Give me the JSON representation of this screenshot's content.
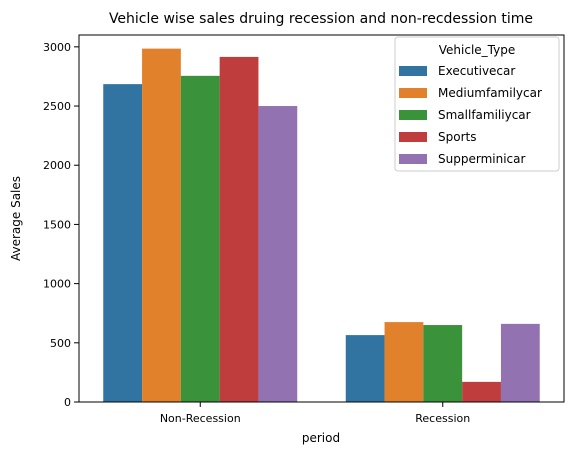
{
  "chart_data": {
    "type": "bar",
    "title": "Vehicle wise sales druing recession and non-recdession time",
    "xlabel": "period",
    "ylabel": "Average Sales",
    "categories": [
      "Non-Recession",
      "Recession"
    ],
    "ylim": [
      0,
      3100
    ],
    "yticks": [
      0,
      500,
      1000,
      1500,
      2000,
      2500,
      3000
    ],
    "grid": false,
    "legend": {
      "title": "Vehicle_Type",
      "position": "top-right"
    },
    "series": [
      {
        "name": "Executivecar",
        "color": "#3274a1",
        "values": [
          2685,
          565
        ]
      },
      {
        "name": "Mediumfamilycar",
        "color": "#e1812c",
        "values": [
          2985,
          675
        ]
      },
      {
        "name": "Smallfamiliycar",
        "color": "#3a923a",
        "values": [
          2755,
          650
        ]
      },
      {
        "name": "Sports",
        "color": "#c03d3e",
        "values": [
          2915,
          170
        ]
      },
      {
        "name": "Supperminicar",
        "color": "#9372b2",
        "values": [
          2500,
          660
        ]
      }
    ]
  }
}
